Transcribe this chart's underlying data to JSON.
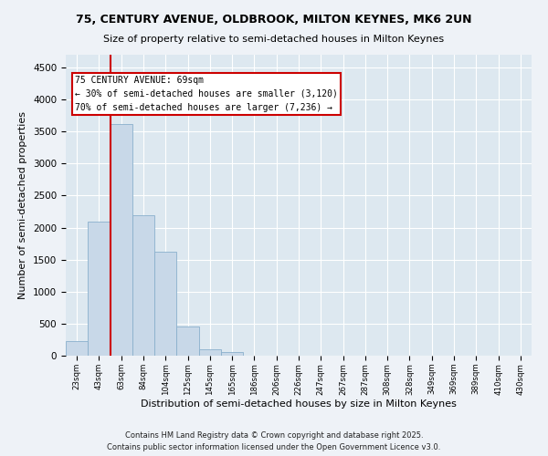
{
  "title_line1": "75, CENTURY AVENUE, OLDBROOK, MILTON KEYNES, MK6 2UN",
  "title_line2": "Size of property relative to semi-detached houses in Milton Keynes",
  "xlabel": "Distribution of semi-detached houses by size in Milton Keynes",
  "ylabel": "Number of semi-detached properties",
  "categories": [
    "23sqm",
    "43sqm",
    "63sqm",
    "84sqm",
    "104sqm",
    "125sqm",
    "145sqm",
    "165sqm",
    "186sqm",
    "206sqm",
    "226sqm",
    "247sqm",
    "267sqm",
    "287sqm",
    "308sqm",
    "328sqm",
    "349sqm",
    "369sqm",
    "389sqm",
    "410sqm",
    "430sqm"
  ],
  "values": [
    230,
    2100,
    3620,
    2200,
    1620,
    450,
    100,
    55,
    0,
    0,
    0,
    0,
    0,
    0,
    0,
    0,
    0,
    0,
    0,
    0,
    0
  ],
  "bar_color": "#c8d8e8",
  "bar_edge_color": "#8ab0cc",
  "vline_color": "#cc0000",
  "vline_x": 1.5,
  "ylim": [
    0,
    4700
  ],
  "yticks": [
    0,
    500,
    1000,
    1500,
    2000,
    2500,
    3000,
    3500,
    4000,
    4500
  ],
  "annotation_title": "75 CENTURY AVENUE: 69sqm",
  "annotation_line1": "← 30% of semi-detached houses are smaller (3,120)",
  "annotation_line2": "70% of semi-detached houses are larger (7,236) →",
  "annotation_box_color": "#ffffff",
  "annotation_box_edge_color": "#cc0000",
  "footnote_line1": "Contains HM Land Registry data © Crown copyright and database right 2025.",
  "footnote_line2": "Contains public sector information licensed under the Open Government Licence v3.0.",
  "background_color": "#eef2f7",
  "plot_background_color": "#dde8f0"
}
